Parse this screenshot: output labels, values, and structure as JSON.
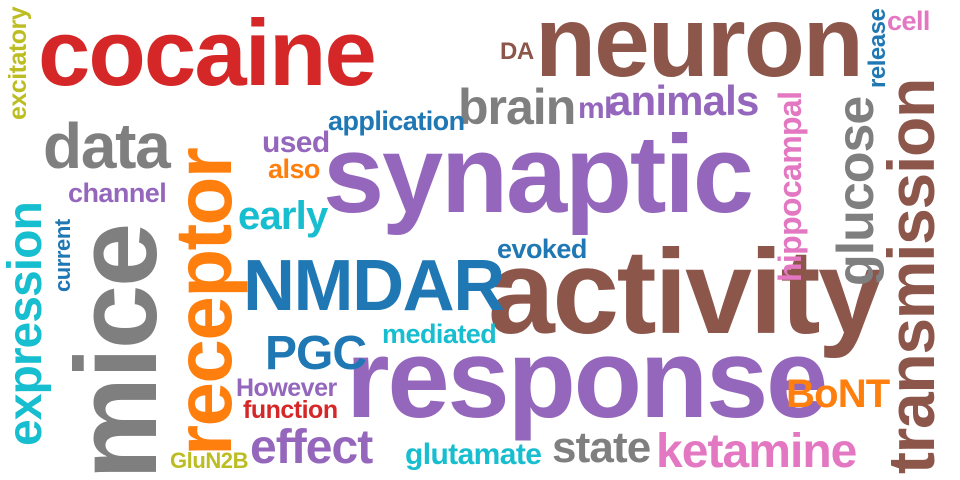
{
  "words": [
    {
      "id": "synaptic",
      "text": "synaptic",
      "color": "#9467bd"
    },
    {
      "id": "activity",
      "text": "activity",
      "color": "#8c564b"
    },
    {
      "id": "response",
      "text": "response",
      "color": "#9467bd"
    },
    {
      "id": "neuron",
      "text": "neuron",
      "color": "#8c564b"
    },
    {
      "id": "cocaine",
      "text": "cocaine",
      "color": "#d62728"
    },
    {
      "id": "mice",
      "text": "mice",
      "color": "#7f7f7f"
    },
    {
      "id": "receptor",
      "text": "receptor",
      "color": "#ff7f0e"
    },
    {
      "id": "nmdar",
      "text": "NMDAR",
      "color": "#1f77b4"
    },
    {
      "id": "transmission",
      "text": "transmission",
      "color": "#8c564b"
    },
    {
      "id": "expression",
      "text": "expression",
      "color": "#17becf"
    },
    {
      "id": "data",
      "text": "data",
      "color": "#7f7f7f"
    },
    {
      "id": "brain",
      "text": "brain",
      "color": "#7f7f7f"
    },
    {
      "id": "animals",
      "text": "animals",
      "color": "#9467bd"
    },
    {
      "id": "glucose",
      "text": "glucose",
      "color": "#7f7f7f"
    },
    {
      "id": "hippocampal",
      "text": "hippocampal",
      "color": "#e377c2"
    },
    {
      "id": "ketamine",
      "text": "ketamine",
      "color": "#e377c2"
    },
    {
      "id": "effect",
      "text": "effect",
      "color": "#9467bd"
    },
    {
      "id": "state",
      "text": "state",
      "color": "#7f7f7f"
    },
    {
      "id": "pgc",
      "text": "PGC",
      "color": "#1f77b4"
    },
    {
      "id": "bont",
      "text": "BoNT",
      "color": "#ff7f0e"
    },
    {
      "id": "early",
      "text": "early",
      "color": "#17becf"
    },
    {
      "id": "glutamate",
      "text": "glutamate",
      "color": "#17becf"
    },
    {
      "id": "however",
      "text": "However",
      "color": "#9467bd"
    },
    {
      "id": "function",
      "text": "function",
      "color": "#d62728"
    },
    {
      "id": "application",
      "text": "application",
      "color": "#1f77b4"
    },
    {
      "id": "used",
      "text": "used",
      "color": "#9467bd"
    },
    {
      "id": "also",
      "text": "also",
      "color": "#ff7f0e"
    },
    {
      "id": "channel",
      "text": "channel",
      "color": "#9467bd"
    },
    {
      "id": "evoked",
      "text": "evoked",
      "color": "#1f77b4"
    },
    {
      "id": "mediated",
      "text": "mediated",
      "color": "#17becf"
    },
    {
      "id": "current",
      "text": "current",
      "color": "#1f77b4"
    },
    {
      "id": "excitatory",
      "text": "excitatory",
      "color": "#bcbd22"
    },
    {
      "id": "glun2b",
      "text": "GluN2B",
      "color": "#bcbd22"
    },
    {
      "id": "release",
      "text": "release",
      "color": "#1f77b4"
    },
    {
      "id": "cell",
      "text": "cell",
      "color": "#e377c2"
    },
    {
      "id": "ml",
      "text": "ml",
      "color": "#9467bd"
    },
    {
      "id": "da",
      "text": "DA",
      "color": "#8c564b"
    }
  ]
}
